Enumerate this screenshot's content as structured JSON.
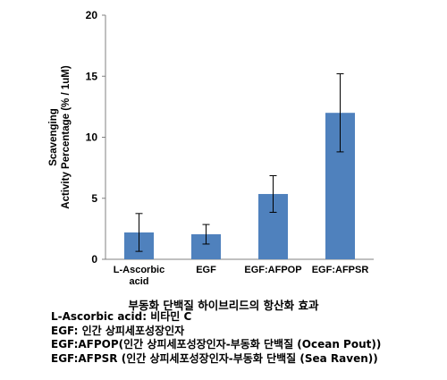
{
  "chart_data": {
    "type": "bar",
    "categories": [
      "L-Ascorbic acid",
      "EGF",
      "EGF:AFPOP",
      "EGF:AFPSR"
    ],
    "category_label_lines": [
      [
        "L-Ascorbic",
        "acid"
      ],
      [
        "EGF"
      ],
      [
        "EGF:AFPOP"
      ],
      [
        "EGF:AFPSR"
      ]
    ],
    "values": [
      2.2,
      2.05,
      5.35,
      12.0
    ],
    "error_bars": [
      1.55,
      0.8,
      1.5,
      3.2
    ],
    "ylabel_lines": [
      "Scavenging",
      "Activity Percentage (% / 1uM)"
    ],
    "ylim": [
      0,
      20
    ],
    "yticks": [
      0,
      5,
      10,
      15,
      20
    ],
    "bar_color": "#4f81bd",
    "grid": false
  },
  "caption": "부동화 단백질 하이브리드의 항산화 효과",
  "notes": [
    "L-Ascorbic acid: 비타민 C",
    "EGF: 인간 상피세포성장인자",
    "EGF:AFPOP(인간 상피세포성장인자-부동화 단백질 (Ocean Pout))",
    "EGF:AFPSR (인간 상피세포성장인자-부동화 단백질 (Sea Raven))"
  ]
}
